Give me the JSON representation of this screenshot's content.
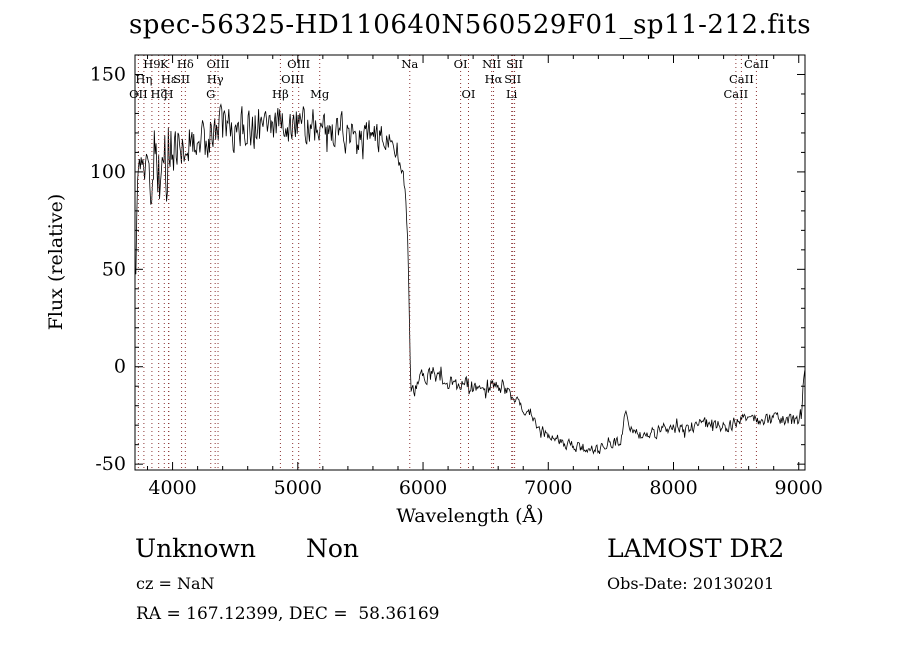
{
  "title": "spec-56325-HD110640N560529F01_sp11-212.fits",
  "chart_data": {
    "type": "line",
    "title": "spec-56325-HD110640N560529F01_sp11-212.fits",
    "xlabel": "Wavelength (Å)",
    "ylabel": "Flux (relative)",
    "xlim": [
      3700,
      9050
    ],
    "ylim": [
      -53,
      160
    ],
    "grid": false,
    "legend": "none",
    "x_ticks": [
      4000,
      5000,
      6000,
      7000,
      8000,
      9000
    ],
    "x_tick_labels": [
      "4000",
      "5000",
      "6000",
      "7000",
      "8000",
      "9000"
    ],
    "x_minor_step": 200,
    "y_ticks": [
      -50,
      0,
      50,
      100,
      150
    ],
    "y_tick_labels": [
      "-50",
      "0",
      "50",
      "100",
      "150"
    ],
    "y_minor_step": 10,
    "background_color": "#ffffff",
    "axis_color": "#000000",
    "spectrum_color": "#000000",
    "marker_color": "#8b3232",
    "spectral_lines": [
      {
        "wavelength": 3727,
        "label": "OII",
        "row": 2
      },
      {
        "wavelength": 3771,
        "label": "Hη",
        "row": 1
      },
      {
        "wavelength": 3835,
        "label": "H9",
        "row": 0
      },
      {
        "wavelength": 3889,
        "label": "Hζ",
        "row": 2
      },
      {
        "wavelength": 3934,
        "label": "K",
        "row": 0
      },
      {
        "wavelength": 3968,
        "label": "H",
        "row": 2
      },
      {
        "wavelength": 3970,
        "label": "Hε",
        "row": 1
      },
      {
        "wavelength": 4072,
        "label": "SII",
        "row": 1
      },
      {
        "wavelength": 4102,
        "label": "Hδ",
        "row": 0
      },
      {
        "wavelength": 4305,
        "label": "G",
        "row": 2
      },
      {
        "wavelength": 4340,
        "label": "Hγ",
        "row": 1
      },
      {
        "wavelength": 4363,
        "label": "OIII",
        "row": 0
      },
      {
        "wavelength": 4861,
        "label": "Hβ",
        "row": 2
      },
      {
        "wavelength": 4959,
        "label": "OIII",
        "row": 1
      },
      {
        "wavelength": 5007,
        "label": "OIII",
        "row": 0
      },
      {
        "wavelength": 5175,
        "label": "Mg",
        "row": 2
      },
      {
        "wavelength": 5894,
        "label": "Na",
        "row": 0
      },
      {
        "wavelength": 6300,
        "label": "OI",
        "row": 0
      },
      {
        "wavelength": 6363,
        "label": "OI",
        "row": 2
      },
      {
        "wavelength": 6548,
        "label": "NII",
        "row": 0
      },
      {
        "wavelength": 6563,
        "label": "Hα",
        "row": 1
      },
      {
        "wavelength": 6708,
        "label": "Li",
        "row": 2
      },
      {
        "wavelength": 6716,
        "label": "SII",
        "row": 1
      },
      {
        "wavelength": 6731,
        "label": "SII",
        "row": 0
      },
      {
        "wavelength": 8498,
        "label": "CaII",
        "row": 2
      },
      {
        "wavelength": 8542,
        "label": "CaII",
        "row": 1
      },
      {
        "wavelength": 8662,
        "label": "CaII",
        "row": 0
      }
    ],
    "series": [
      {
        "name": "flux",
        "sample_step_angstrom": 7,
        "seed": 20130201,
        "trend_points": [
          [
            3700,
            30
          ],
          [
            3708,
            65
          ],
          [
            3718,
            95
          ],
          [
            3730,
            103
          ],
          [
            3745,
            108
          ],
          [
            3760,
            98
          ],
          [
            3775,
            106
          ],
          [
            3790,
            110
          ],
          [
            3810,
            102
          ],
          [
            3830,
            98
          ],
          [
            3850,
            112
          ],
          [
            3870,
            104
          ],
          [
            3890,
            96
          ],
          [
            3910,
            106
          ],
          [
            3930,
            110
          ],
          [
            3950,
            103
          ],
          [
            3970,
            108
          ],
          [
            4000,
            112
          ],
          [
            4030,
            117
          ],
          [
            4060,
            113
          ],
          [
            4100,
            111
          ],
          [
            4140,
            118
          ],
          [
            4180,
            116
          ],
          [
            4220,
            119
          ],
          [
            4260,
            117
          ],
          [
            4300,
            119
          ],
          [
            4340,
            116
          ],
          [
            4380,
            122
          ],
          [
            4430,
            124
          ],
          [
            4480,
            121
          ],
          [
            4530,
            123
          ],
          [
            4580,
            125
          ],
          [
            4640,
            123
          ],
          [
            4700,
            124
          ],
          [
            4760,
            126
          ],
          [
            4820,
            124
          ],
          [
            4880,
            125
          ],
          [
            4940,
            123
          ],
          [
            5000,
            126
          ],
          [
            5060,
            124
          ],
          [
            5120,
            125
          ],
          [
            5180,
            122
          ],
          [
            5240,
            124
          ],
          [
            5300,
            121
          ],
          [
            5360,
            123
          ],
          [
            5420,
            122
          ],
          [
            5480,
            119
          ],
          [
            5540,
            120
          ],
          [
            5600,
            120
          ],
          [
            5660,
            117
          ],
          [
            5720,
            115
          ],
          [
            5780,
            112
          ],
          [
            5830,
            104
          ],
          [
            5860,
            88
          ],
          [
            5880,
            62
          ],
          [
            5890,
            30
          ],
          [
            5897,
            5
          ],
          [
            5903,
            -10
          ],
          [
            5915,
            -13
          ],
          [
            5940,
            -9
          ],
          [
            5970,
            -6
          ],
          [
            6000,
            -8
          ],
          [
            6040,
            -5
          ],
          [
            6080,
            -4
          ],
          [
            6120,
            -5
          ],
          [
            6160,
            -7
          ],
          [
            6200,
            -8
          ],
          [
            6240,
            -7
          ],
          [
            6280,
            -9
          ],
          [
            6320,
            -8
          ],
          [
            6360,
            -9
          ],
          [
            6400,
            -11
          ],
          [
            6440,
            -9
          ],
          [
            6480,
            -10
          ],
          [
            6520,
            -9
          ],
          [
            6560,
            -10
          ],
          [
            6600,
            -11
          ],
          [
            6640,
            -12
          ],
          [
            6680,
            -13
          ],
          [
            6720,
            -15
          ],
          [
            6760,
            -18
          ],
          [
            6800,
            -21
          ],
          [
            6850,
            -25
          ],
          [
            6900,
            -29
          ],
          [
            6950,
            -32
          ],
          [
            7000,
            -35
          ],
          [
            7060,
            -37
          ],
          [
            7120,
            -39
          ],
          [
            7180,
            -40
          ],
          [
            7240,
            -41
          ],
          [
            7300,
            -42
          ],
          [
            7360,
            -43
          ],
          [
            7420,
            -42
          ],
          [
            7480,
            -41
          ],
          [
            7540,
            -39
          ],
          [
            7580,
            -37
          ],
          [
            7605,
            -28
          ],
          [
            7618,
            -21
          ],
          [
            7632,
            -27
          ],
          [
            7650,
            -32
          ],
          [
            7680,
            -34
          ],
          [
            7720,
            -35
          ],
          [
            7760,
            -34
          ],
          [
            7800,
            -33
          ],
          [
            7850,
            -34
          ],
          [
            7900,
            -32
          ],
          [
            7950,
            -31
          ],
          [
            8000,
            -31
          ],
          [
            8060,
            -32
          ],
          [
            8120,
            -31
          ],
          [
            8180,
            -30
          ],
          [
            8240,
            -29
          ],
          [
            8300,
            -29
          ],
          [
            8360,
            -30
          ],
          [
            8420,
            -31
          ],
          [
            8480,
            -29
          ],
          [
            8540,
            -28
          ],
          [
            8600,
            -26
          ],
          [
            8660,
            -27
          ],
          [
            8720,
            -28
          ],
          [
            8780,
            -27
          ],
          [
            8840,
            -26
          ],
          [
            8900,
            -27
          ],
          [
            8950,
            -28
          ],
          [
            9000,
            -27
          ],
          [
            9025,
            -22
          ],
          [
            9040,
            -8
          ],
          [
            9050,
            -3
          ]
        ],
        "noise_segments": [
          [
            3700,
            3765,
            24
          ],
          [
            3765,
            4060,
            20
          ],
          [
            4060,
            4700,
            12
          ],
          [
            4700,
            5500,
            10
          ],
          [
            5500,
            5830,
            8
          ],
          [
            5830,
            5910,
            4
          ],
          [
            5910,
            6520,
            4.5
          ],
          [
            6520,
            6800,
            3.5
          ],
          [
            6800,
            7580,
            3
          ],
          [
            7580,
            7660,
            2.5
          ],
          [
            7660,
            9050,
            3.5
          ]
        ]
      }
    ]
  },
  "footer": {
    "classification": "Unknown",
    "subclass": "Non",
    "survey": "LAMOST DR2",
    "cz": "cz = NaN",
    "obs_date": "Obs-Date: 20130201",
    "coordinates": "RA = 167.12399, DEC =  58.36169"
  }
}
